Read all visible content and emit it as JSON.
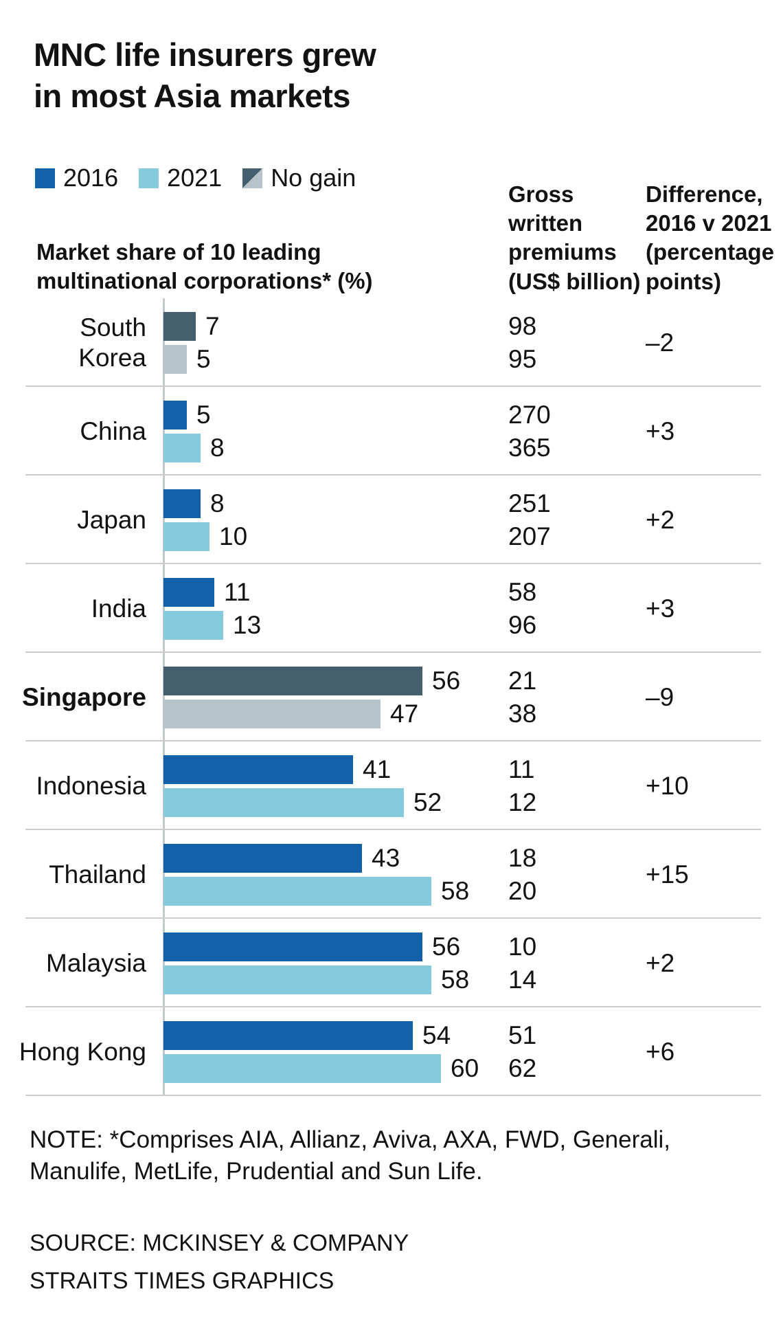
{
  "title": "MNC life insurers grew\nin most Asia markets",
  "legend": {
    "items": [
      {
        "label": "2016"
      },
      {
        "label": "2021"
      },
      {
        "label": "No gain"
      }
    ]
  },
  "colors": {
    "bar_2016": "#1261a9",
    "bar_2021": "#86cadd",
    "no_gain_2016": "#44606f",
    "no_gain_2021": "#b7c3cb",
    "axis": "#c3c8cb",
    "divider": "#cccccc"
  },
  "headers": {
    "market_share": "Market share of 10 leading\nmultinational corporations* (%)",
    "gwp": "Gross\nwritten\npremiums\n(US$ billion)",
    "difference": "Difference,\n2016 v 2021\n(percentage\npoints)"
  },
  "chart_data": {
    "type": "bar",
    "orientation": "horizontal",
    "title": "MNC life insurers grew in most Asia markets",
    "xlabel": "Market share of 10 leading multinational corporations* (%)",
    "xlim": [
      0,
      60
    ],
    "grid": false,
    "legend_position": "top",
    "categories": [
      "South Korea",
      "China",
      "Japan",
      "India",
      "Singapore",
      "Indonesia",
      "Thailand",
      "Malaysia",
      "Hong Kong"
    ],
    "series": [
      {
        "name": "2016 market share (%)",
        "values": [
          7,
          5,
          8,
          11,
          56,
          41,
          43,
          56,
          54
        ]
      },
      {
        "name": "2021 market share (%)",
        "values": [
          5,
          8,
          10,
          13,
          47,
          52,
          58,
          58,
          60
        ]
      },
      {
        "name": "Gross written premiums 2016 (US$ billion)",
        "values": [
          98,
          270,
          251,
          58,
          21,
          11,
          18,
          10,
          51
        ]
      },
      {
        "name": "Gross written premiums 2021 (US$ billion)",
        "values": [
          95,
          365,
          207,
          96,
          38,
          12,
          20,
          14,
          62
        ]
      },
      {
        "name": "Difference, 2016 v 2021 (percentage points)",
        "values": [
          -2,
          3,
          2,
          3,
          -9,
          10,
          15,
          2,
          6
        ]
      }
    ],
    "no_gain_categories": [
      "South Korea",
      "Singapore"
    ],
    "rows": [
      {
        "category": "South Korea",
        "label_lines": [
          "South",
          "Korea"
        ],
        "market_share_2016": 7,
        "market_share_2021": 5,
        "gwp_2016": "98",
        "gwp_2021": "95",
        "difference": "–2",
        "no_gain": true,
        "bold": false
      },
      {
        "category": "China",
        "label_lines": [
          "China"
        ],
        "market_share_2016": 5,
        "market_share_2021": 8,
        "gwp_2016": "270",
        "gwp_2021": "365",
        "difference": "+3",
        "no_gain": false,
        "bold": false
      },
      {
        "category": "Japan",
        "label_lines": [
          "Japan"
        ],
        "market_share_2016": 8,
        "market_share_2021": 10,
        "gwp_2016": "251",
        "gwp_2021": "207",
        "difference": "+2",
        "no_gain": false,
        "bold": false
      },
      {
        "category": "India",
        "label_lines": [
          "India"
        ],
        "market_share_2016": 11,
        "market_share_2021": 13,
        "gwp_2016": "58",
        "gwp_2021": "96",
        "difference": "+3",
        "no_gain": false,
        "bold": false
      },
      {
        "category": "Singapore",
        "label_lines": [
          "Singapore"
        ],
        "market_share_2016": 56,
        "market_share_2021": 47,
        "gwp_2016": "21",
        "gwp_2021": "38",
        "difference": "–9",
        "no_gain": true,
        "bold": true
      },
      {
        "category": "Indonesia",
        "label_lines": [
          "Indonesia"
        ],
        "market_share_2016": 41,
        "market_share_2021": 52,
        "gwp_2016": "11",
        "gwp_2021": "12",
        "difference": "+10",
        "no_gain": false,
        "bold": false
      },
      {
        "category": "Thailand",
        "label_lines": [
          "Thailand"
        ],
        "market_share_2016": 43,
        "market_share_2021": 58,
        "gwp_2016": "18",
        "gwp_2021": "20",
        "difference": "+15",
        "no_gain": false,
        "bold": false
      },
      {
        "category": "Malaysia",
        "label_lines": [
          "Malaysia"
        ],
        "market_share_2016": 56,
        "market_share_2021": 58,
        "gwp_2016": "10",
        "gwp_2021": "14",
        "difference": "+2",
        "no_gain": false,
        "bold": false
      },
      {
        "category": "Hong Kong",
        "label_lines": [
          "Hong Kong"
        ],
        "market_share_2016": 54,
        "market_share_2021": 60,
        "gwp_2016": "51",
        "gwp_2021": "62",
        "difference": "+6",
        "no_gain": false,
        "bold": false
      }
    ]
  },
  "note": "NOTE: *Comprises AIA, Allianz, Aviva, AXA, FWD, Generali,\nManulife, MetLife, Prudential and Sun Life.",
  "source": {
    "line1": "SOURCE: MCKINSEY & COMPANY",
    "line2": "STRAITS TIMES GRAPHICS"
  }
}
